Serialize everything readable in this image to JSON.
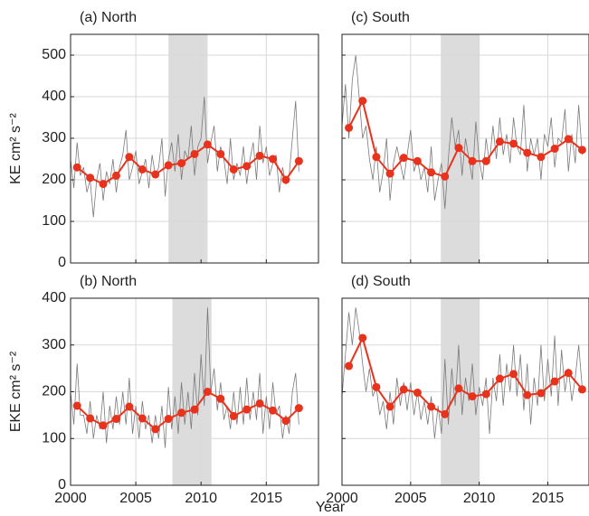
{
  "chart_data": [
    {
      "type": "line",
      "title": "(a) North",
      "ylabel": "KE cm² s⁻²",
      "xlim": [
        2000,
        2019
      ],
      "ylim": [
        0,
        550
      ],
      "xticks": [
        2000,
        2005,
        2010,
        2015
      ],
      "yticks": [
        0,
        100,
        200,
        300,
        400,
        500
      ],
      "show_xtick_labels": false,
      "show_ytick_labels": true,
      "grid": true,
      "shade": [
        2007.5,
        2010.5
      ],
      "shade_color": "#dcdcdc",
      "series": [
        {
          "color": "#7a7a7a",
          "markers": false,
          "x": [
            2000,
            2000.25,
            2000.5,
            2000.75,
            2001,
            2001.25,
            2001.5,
            2001.75,
            2002,
            2002.25,
            2002.5,
            2002.75,
            2003,
            2003.25,
            2003.5,
            2003.75,
            2004,
            2004.25,
            2004.5,
            2004.75,
            2005,
            2005.25,
            2005.5,
            2005.75,
            2006,
            2006.25,
            2006.5,
            2006.75,
            2007,
            2007.25,
            2007.5,
            2007.75,
            2008,
            2008.25,
            2008.5,
            2008.75,
            2009,
            2009.25,
            2009.5,
            2009.75,
            2010,
            2010.25,
            2010.5,
            2010.75,
            2011,
            2011.25,
            2011.5,
            2011.75,
            2012,
            2012.25,
            2012.5,
            2012.75,
            2013,
            2013.25,
            2013.5,
            2013.75,
            2014,
            2014.25,
            2014.5,
            2014.75,
            2015,
            2015.25,
            2015.5,
            2015.75,
            2016,
            2016.25,
            2016.5,
            2016.75,
            2017,
            2017.25,
            2017.5
          ],
          "values": [
            250,
            180,
            290,
            210,
            230,
            170,
            200,
            110,
            200,
            240,
            150,
            220,
            190,
            250,
            170,
            230,
            260,
            320,
            200,
            230,
            270,
            190,
            220,
            250,
            180,
            260,
            210,
            230,
            300,
            160,
            250,
            290,
            220,
            310,
            200,
            270,
            250,
            330,
            210,
            280,
            300,
            400,
            240,
            290,
            330,
            220,
            280,
            250,
            190,
            300,
            200,
            240,
            210,
            280,
            190,
            250,
            290,
            200,
            330,
            240,
            280,
            210,
            240,
            260,
            170,
            230,
            190,
            210,
            300,
            390,
            220
          ]
        },
        {
          "color": "#e8321c",
          "markers": true,
          "x": [
            2000.5,
            2001.5,
            2002.5,
            2003.5,
            2004.5,
            2005.5,
            2006.5,
            2007.5,
            2008.5,
            2009.5,
            2010.5,
            2011.5,
            2012.5,
            2013.5,
            2014.5,
            2015.5,
            2016.5,
            2017.5
          ],
          "values": [
            230,
            205,
            190,
            210,
            255,
            225,
            213,
            235,
            240,
            262,
            285,
            262,
            225,
            233,
            258,
            250,
            200,
            245
          ]
        }
      ]
    },
    {
      "type": "line",
      "title": "(c) South",
      "xlim": [
        2000,
        2018
      ],
      "ylim": [
        0,
        550
      ],
      "xticks": [
        2000,
        2005,
        2010,
        2015
      ],
      "yticks": [
        0,
        100,
        200,
        300,
        400,
        500
      ],
      "show_xtick_labels": false,
      "show_ytick_labels": false,
      "grid": true,
      "shade": [
        2007.2,
        2010
      ],
      "shade_color": "#dcdcdc",
      "series": [
        {
          "color": "#7a7a7a",
          "markers": false,
          "x": [
            2000,
            2000.25,
            2000.5,
            2000.75,
            2001,
            2001.25,
            2001.5,
            2001.75,
            2002,
            2002.25,
            2002.5,
            2002.75,
            2003,
            2003.25,
            2003.5,
            2003.75,
            2004,
            2004.25,
            2004.5,
            2004.75,
            2005,
            2005.25,
            2005.5,
            2005.75,
            2006,
            2006.25,
            2006.5,
            2006.75,
            2007,
            2007.25,
            2007.5,
            2007.75,
            2008,
            2008.25,
            2008.5,
            2008.75,
            2009,
            2009.25,
            2009.5,
            2009.75,
            2010,
            2010.25,
            2010.5,
            2010.75,
            2011,
            2011.25,
            2011.5,
            2011.75,
            2012,
            2012.25,
            2012.5,
            2012.75,
            2013,
            2013.25,
            2013.5,
            2013.75,
            2014,
            2014.25,
            2014.5,
            2014.75,
            2015,
            2015.25,
            2015.5,
            2015.75,
            2016,
            2016.25,
            2016.5,
            2016.75,
            2017,
            2017.25,
            2017.5
          ],
          "values": [
            330,
            430,
            300,
            440,
            500,
            400,
            300,
            330,
            250,
            200,
            280,
            170,
            220,
            300,
            150,
            240,
            280,
            240,
            200,
            260,
            320,
            220,
            250,
            200,
            230,
            170,
            280,
            150,
            200,
            240,
            130,
            250,
            350,
            280,
            320,
            210,
            300,
            250,
            200,
            340,
            250,
            200,
            300,
            240,
            330,
            250,
            350,
            260,
            310,
            240,
            350,
            280,
            260,
            380,
            220,
            300,
            260,
            300,
            200,
            310,
            280,
            350,
            230,
            300,
            290,
            370,
            220,
            310,
            240,
            380,
            260
          ]
        },
        {
          "color": "#e8321c",
          "markers": true,
          "x": [
            2000.5,
            2001.5,
            2002.5,
            2003.5,
            2004.5,
            2005.5,
            2006.5,
            2007.5,
            2008.5,
            2009.5,
            2010.5,
            2011.5,
            2012.5,
            2013.5,
            2014.5,
            2015.5,
            2016.5,
            2017.5
          ],
          "values": [
            325,
            390,
            255,
            215,
            253,
            245,
            218,
            208,
            277,
            245,
            245,
            292,
            287,
            265,
            255,
            275,
            298,
            272
          ]
        }
      ]
    },
    {
      "type": "line",
      "title": "(b) North",
      "ylabel": "EKE cm² s⁻²",
      "xlim": [
        2000,
        2019
      ],
      "ylim": [
        0,
        400
      ],
      "xticks": [
        2000,
        2005,
        2010,
        2015
      ],
      "yticks": [
        0,
        100,
        200,
        300,
        400
      ],
      "show_xtick_labels": true,
      "show_ytick_labels": true,
      "grid": true,
      "shade": [
        2007.8,
        2010.8
      ],
      "shade_color": "#dcdcdc",
      "series": [
        {
          "color": "#7a7a7a",
          "markers": false,
          "x": [
            2000,
            2000.25,
            2000.5,
            2000.75,
            2001,
            2001.25,
            2001.5,
            2001.75,
            2002,
            2002.25,
            2002.5,
            2002.75,
            2003,
            2003.25,
            2003.5,
            2003.75,
            2004,
            2004.25,
            2004.5,
            2004.75,
            2005,
            2005.25,
            2005.5,
            2005.75,
            2006,
            2006.25,
            2006.5,
            2006.75,
            2007,
            2007.25,
            2007.5,
            2007.75,
            2008,
            2008.25,
            2008.5,
            2008.75,
            2009,
            2009.25,
            2009.5,
            2009.75,
            2010,
            2010.25,
            2010.5,
            2010.75,
            2011,
            2011.25,
            2011.5,
            2011.75,
            2012,
            2012.25,
            2012.5,
            2012.75,
            2013,
            2013.25,
            2013.5,
            2013.75,
            2014,
            2014.25,
            2014.5,
            2014.75,
            2015,
            2015.25,
            2015.5,
            2015.75,
            2016,
            2016.25,
            2016.5,
            2016.75,
            2017,
            2017.25,
            2017.5
          ],
          "values": [
            200,
            130,
            260,
            150,
            150,
            110,
            180,
            100,
            150,
            120,
            200,
            90,
            170,
            120,
            190,
            130,
            200,
            130,
            230,
            110,
            170,
            100,
            180,
            120,
            150,
            90,
            150,
            100,
            170,
            80,
            210,
            120,
            190,
            110,
            220,
            130,
            200,
            120,
            240,
            150,
            280,
            170,
            380,
            200,
            250,
            160,
            220,
            140,
            170,
            120,
            200,
            130,
            210,
            130,
            230,
            140,
            200,
            140,
            240,
            110,
            190,
            120,
            220,
            150,
            170,
            100,
            150,
            110,
            200,
            240,
            130
          ]
        },
        {
          "color": "#e8321c",
          "markers": true,
          "x": [
            2000.5,
            2001.5,
            2002.5,
            2003.5,
            2004.5,
            2005.5,
            2006.5,
            2007.5,
            2008.5,
            2009.5,
            2010.5,
            2011.5,
            2012.5,
            2013.5,
            2014.5,
            2015.5,
            2016.5,
            2017.5
          ],
          "values": [
            170,
            143,
            128,
            142,
            168,
            143,
            120,
            142,
            155,
            162,
            200,
            185,
            148,
            162,
            175,
            160,
            138,
            165
          ]
        }
      ]
    },
    {
      "type": "line",
      "title": "(d) South",
      "xlabel": "Year",
      "xlim": [
        2000,
        2018
      ],
      "ylim": [
        0,
        400
      ],
      "xticks": [
        2000,
        2005,
        2010,
        2015
      ],
      "yticks": [
        0,
        100,
        200,
        300,
        400
      ],
      "show_xtick_labels": true,
      "show_ytick_labels": false,
      "grid": true,
      "shade": [
        2007.2,
        2010
      ],
      "shade_color": "#dcdcdc",
      "series": [
        {
          "color": "#7a7a7a",
          "markers": false,
          "x": [
            2000,
            2000.25,
            2000.5,
            2000.75,
            2001,
            2001.25,
            2001.5,
            2001.75,
            2002,
            2002.25,
            2002.5,
            2002.75,
            2003,
            2003.25,
            2003.5,
            2003.75,
            2004,
            2004.25,
            2004.5,
            2004.75,
            2005,
            2005.25,
            2005.5,
            2005.75,
            2006,
            2006.25,
            2006.5,
            2006.75,
            2007,
            2007.25,
            2007.5,
            2007.75,
            2008,
            2008.25,
            2008.5,
            2008.75,
            2009,
            2009.25,
            2009.5,
            2009.75,
            2010,
            2010.25,
            2010.5,
            2010.75,
            2011,
            2011.25,
            2011.5,
            2011.75,
            2012,
            2012.25,
            2012.5,
            2012.75,
            2013,
            2013.25,
            2013.5,
            2013.75,
            2014,
            2014.25,
            2014.5,
            2014.75,
            2015,
            2015.25,
            2015.5,
            2015.75,
            2016,
            2016.25,
            2016.5,
            2016.75,
            2017,
            2017.25,
            2017.5
          ],
          "values": [
            190,
            280,
            370,
            300,
            380,
            330,
            260,
            200,
            250,
            190,
            210,
            150,
            180,
            120,
            200,
            130,
            230,
            170,
            220,
            160,
            220,
            150,
            200,
            140,
            180,
            130,
            190,
            100,
            170,
            110,
            270,
            130,
            250,
            170,
            300,
            150,
            230,
            180,
            260,
            150,
            210,
            170,
            230,
            110,
            230,
            180,
            280,
            170,
            260,
            200,
            300,
            190,
            280,
            160,
            260,
            130,
            230,
            170,
            300,
            180,
            270,
            190,
            320,
            170,
            290,
            200,
            250,
            180,
            230,
            300,
            210
          ]
        },
        {
          "color": "#e8321c",
          "markers": true,
          "x": [
            2000.5,
            2001.5,
            2002.5,
            2003.5,
            2004.5,
            2005.5,
            2006.5,
            2007.5,
            2008.5,
            2009.5,
            2010.5,
            2011.5,
            2012.5,
            2013.5,
            2014.5,
            2015.5,
            2016.5,
            2017.5
          ],
          "values": [
            255,
            315,
            210,
            168,
            205,
            198,
            168,
            152,
            207,
            190,
            195,
            228,
            238,
            193,
            197,
            222,
            240,
            205
          ]
        }
      ]
    }
  ]
}
